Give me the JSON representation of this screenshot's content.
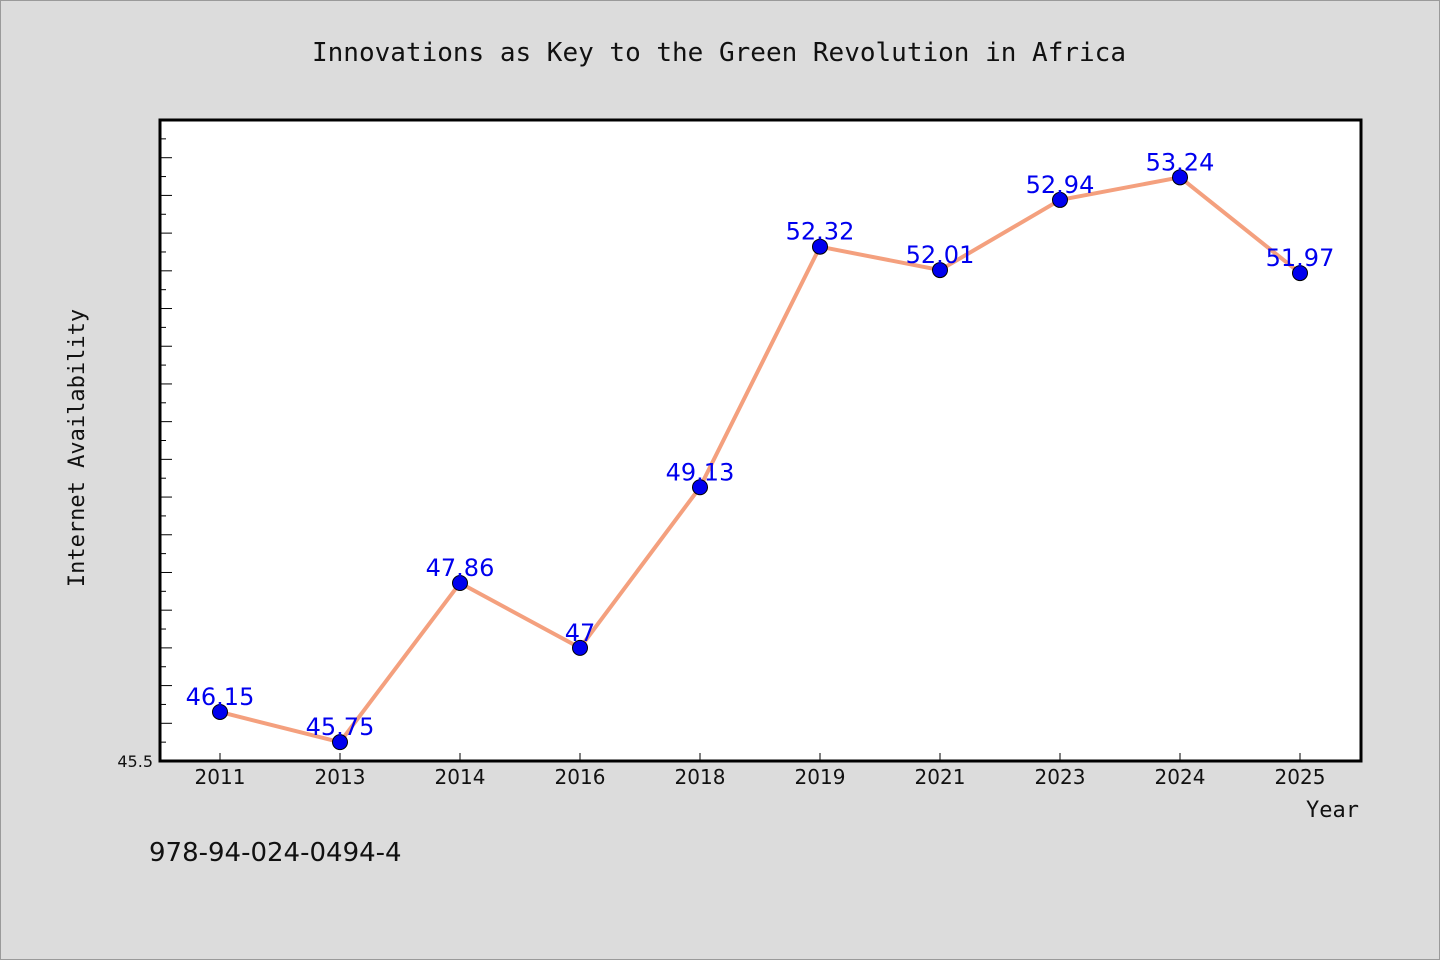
{
  "chart_data": {
    "type": "line",
    "title": "Innovations as Key to the Green Revolution in Africa",
    "xlabel": "Year",
    "ylabel": "Internet Availability",
    "categories": [
      "2011",
      "2013",
      "2014",
      "2016",
      "2018",
      "2019",
      "2021",
      "2023",
      "2024",
      "2025"
    ],
    "series": [
      {
        "values": [
          46.15,
          45.75,
          47.86,
          47,
          49.13,
          52.32,
          52.01,
          52.94,
          53.24,
          51.97
        ],
        "labels": [
          "46.15",
          "45.75",
          "47.86",
          "47",
          "49.13",
          "52.32",
          "52.01",
          "52.94",
          "53.24",
          "51.97"
        ]
      }
    ],
    "ylim": [
      45.5,
      54.0
    ],
    "ytick_label": "45.5",
    "grid": false,
    "colors": {
      "line": "#f4a07e",
      "marker": "#0000ee",
      "data_label": "#0000ee",
      "background": "#dcdcdc",
      "plot_background": "#ffffff"
    }
  },
  "footnote": "978-94-024-0494-4"
}
